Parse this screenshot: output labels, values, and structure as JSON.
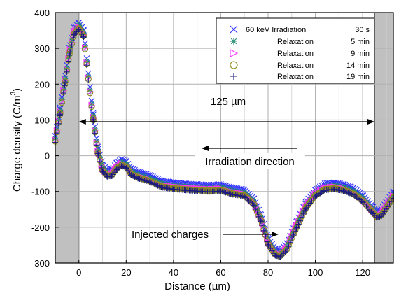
{
  "chart_data": {
    "type": "scatter",
    "xlabel": "Distance (µm)",
    "ylabel_main": "Charge density (C/m",
    "ylabel_sup": "3",
    "ylabel_close": ")",
    "xlim": [
      -10,
      133
    ],
    "ylim": [
      -300,
      400
    ],
    "xticks": [
      0,
      20,
      40,
      60,
      80,
      100,
      120
    ],
    "yticks": [
      -300,
      -200,
      -100,
      0,
      100,
      200,
      300,
      400
    ],
    "grid": true,
    "shaded_regions": [
      [
        -10,
        0
      ],
      [
        125,
        133
      ]
    ],
    "legend": {
      "placement": "top-right",
      "entries": [
        {
          "label": "60 keV  Irradiation",
          "time": "30 s",
          "marker": "x",
          "color": "#3333ff"
        },
        {
          "label": "Relaxation",
          "time": "5 min",
          "marker": "asterisk",
          "color": "#208a72"
        },
        {
          "label": "Relaxation",
          "time": "9 min",
          "marker": "triangle-right",
          "color": "#ff33ff"
        },
        {
          "label": "Relaxation",
          "time": "14 min",
          "marker": "circle",
          "color": "#8c8c1a"
        },
        {
          "label": "Relaxation",
          "time": "19 min",
          "marker": "plus",
          "color": "#1a1a80"
        }
      ]
    },
    "annotations": {
      "width_label": "125 µm",
      "width_span": [
        0,
        125
      ],
      "width_y": 95,
      "direction_label": "Irradiation direction",
      "injected_label": "Injected charges"
    },
    "series": [
      {
        "name": "60 keV Irradiation 30 s",
        "x": [
          -10,
          -8,
          -6,
          -4,
          -2,
          0,
          2,
          4,
          6,
          8,
          10,
          12,
          14,
          16,
          18,
          20,
          22,
          25,
          30,
          35,
          40,
          45,
          50,
          55,
          60,
          65,
          70,
          74,
          77,
          80,
          83,
          85,
          88,
          92,
          96,
          100,
          104,
          108,
          112,
          116,
          120,
          124,
          126,
          128,
          130,
          133
        ],
        "y": [
          55,
          130,
          215,
          300,
          358,
          372,
          350,
          230,
          120,
          25,
          -25,
          -40,
          -38,
          -20,
          -10,
          -15,
          -35,
          -45,
          -55,
          -70,
          -75,
          -78,
          -80,
          -82,
          -80,
          -90,
          -95,
          -120,
          -165,
          -230,
          -260,
          -265,
          -245,
          -185,
          -130,
          -95,
          -78,
          -75,
          -80,
          -90,
          -110,
          -140,
          -155,
          -150,
          -130,
          -100
        ]
      },
      {
        "name": "Relaxation 5 min",
        "x": [
          -10,
          -8,
          -6,
          -4,
          -2,
          0,
          2,
          4,
          6,
          8,
          10,
          12,
          14,
          16,
          18,
          20,
          22,
          25,
          30,
          35,
          40,
          45,
          50,
          55,
          60,
          65,
          70,
          74,
          77,
          80,
          83,
          85,
          88,
          92,
          96,
          100,
          104,
          108,
          112,
          116,
          120,
          124,
          126,
          128,
          130,
          133
        ],
        "y": [
          48,
          123,
          207,
          292,
          350,
          365,
          342,
          222,
          112,
          17,
          -33,
          -48,
          -46,
          -28,
          -18,
          -23,
          -43,
          -53,
          -63,
          -78,
          -83,
          -86,
          -88,
          -90,
          -88,
          -98,
          -103,
          -128,
          -173,
          -238,
          -268,
          -273,
          -253,
          -193,
          -138,
          -103,
          -86,
          -83,
          -88,
          -98,
          -118,
          -148,
          -163,
          -158,
          -138,
          -108
        ]
      },
      {
        "name": "Relaxation 9 min",
        "x": [
          -10,
          -8,
          -6,
          -4,
          -2,
          0,
          2,
          4,
          6,
          8,
          10,
          12,
          14,
          16,
          18,
          20,
          22,
          25,
          30,
          35,
          40,
          45,
          50,
          55,
          60,
          65,
          70,
          74,
          77,
          80,
          83,
          85,
          88,
          92,
          96,
          100,
          104,
          108,
          112,
          116,
          120,
          124,
          126,
          128,
          130,
          133
        ],
        "y": [
          44,
          119,
          203,
          288,
          345,
          360,
          338,
          218,
          108,
          13,
          -37,
          -52,
          -50,
          -32,
          -22,
          -27,
          -47,
          -57,
          -67,
          -82,
          -87,
          -90,
          -92,
          -94,
          -92,
          -102,
          -107,
          -132,
          -177,
          -242,
          -272,
          -277,
          -257,
          -197,
          -142,
          -107,
          -90,
          -87,
          -92,
          -102,
          -122,
          -152,
          -167,
          -162,
          -142,
          -112
        ]
      },
      {
        "name": "Relaxation 14 min",
        "x": [
          -10,
          -8,
          -6,
          -4,
          -2,
          0,
          2,
          4,
          6,
          8,
          10,
          12,
          14,
          16,
          18,
          20,
          22,
          25,
          30,
          35,
          40,
          45,
          50,
          55,
          60,
          65,
          70,
          74,
          77,
          80,
          83,
          85,
          88,
          92,
          96,
          100,
          104,
          108,
          112,
          116,
          120,
          124,
          126,
          128,
          130,
          133
        ],
        "y": [
          40,
          115,
          199,
          284,
          341,
          356,
          334,
          214,
          104,
          9,
          -41,
          -56,
          -54,
          -36,
          -26,
          -31,
          -51,
          -61,
          -71,
          -86,
          -91,
          -94,
          -96,
          -98,
          -96,
          -106,
          -111,
          -136,
          -181,
          -246,
          -276,
          -281,
          -261,
          -201,
          -146,
          -111,
          -94,
          -91,
          -96,
          -106,
          -126,
          -156,
          -171,
          -166,
          -146,
          -116
        ]
      },
      {
        "name": "Relaxation 19 min",
        "x": [
          -10,
          -8,
          -6,
          -4,
          -2,
          0,
          2,
          4,
          6,
          8,
          10,
          12,
          14,
          16,
          18,
          20,
          22,
          25,
          30,
          35,
          40,
          45,
          50,
          55,
          60,
          65,
          70,
          74,
          77,
          80,
          83,
          85,
          88,
          92,
          96,
          100,
          104,
          108,
          112,
          116,
          120,
          124,
          126,
          128,
          130,
          133
        ],
        "y": [
          37,
          112,
          196,
          281,
          338,
          353,
          331,
          211,
          101,
          6,
          -44,
          -59,
          -57,
          -39,
          -29,
          -34,
          -54,
          -64,
          -74,
          -89,
          -94,
          -97,
          -99,
          -101,
          -99,
          -109,
          -114,
          -139,
          -184,
          -249,
          -279,
          -284,
          -264,
          -204,
          -149,
          -114,
          -97,
          -94,
          -99,
          -109,
          -129,
          -159,
          -174,
          -169,
          -149,
          -119
        ]
      }
    ]
  }
}
